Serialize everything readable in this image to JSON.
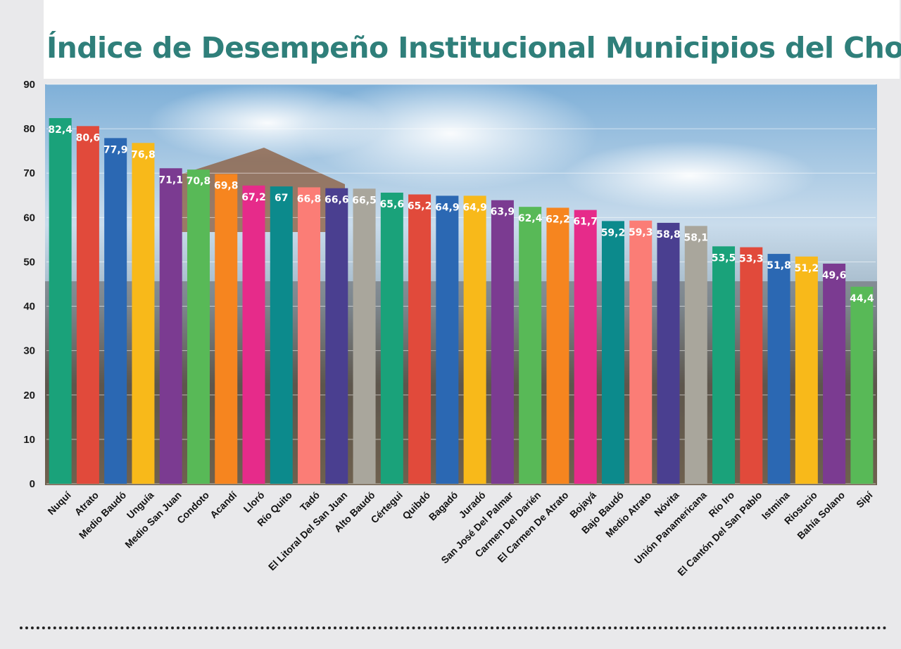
{
  "chart_data": {
    "type": "bar",
    "title": "Índice de Desempeño Institucional Municipios del Chocó",
    "xlabel": "",
    "ylabel": "",
    "ylim": [
      0,
      90
    ],
    "yticks": [
      0,
      10,
      20,
      30,
      40,
      50,
      60,
      70,
      80,
      90
    ],
    "grid": true,
    "legend": "none",
    "categories": [
      "Nuquí",
      "Atrato",
      "Medio Baudó",
      "Unguía",
      "Medio San Juan",
      "Condoto",
      "Acandí",
      "Lloró",
      "Río Quito",
      "Tadó",
      "El Litoral Del San Juan",
      "Alto Baudó",
      "Cértegui",
      "Quibdó",
      "Bagadó",
      "Juradó",
      "San José Del Palmar",
      "Carmen Del Darién",
      "El Carmen De Atrato",
      "Bojayá",
      "Bajo Baudó",
      "Medio Atrato",
      "Nóvita",
      "Unión Panamericana",
      "Río Iro",
      "El Cantón Del San Pablo",
      "Istmina",
      "Riosucio",
      "Bahía Solano",
      "Sipí"
    ],
    "values": [
      82.4,
      80.6,
      77.9,
      76.8,
      71.1,
      70.8,
      69.8,
      67.2,
      67,
      66.8,
      66.6,
      66.5,
      65.6,
      65.2,
      64.9,
      64.9,
      63.9,
      62.4,
      62.2,
      61.7,
      59.2,
      59.3,
      58.8,
      58.1,
      53.5,
      53.3,
      51.8,
      51.2,
      49.6,
      44.4
    ],
    "value_labels": [
      "82,4",
      "80,6",
      "77,9",
      "76,8",
      "71,1",
      "70,8",
      "69,8",
      "67,2",
      "67",
      "66,8",
      "66,6",
      "66,5",
      "65,6",
      "65,2",
      "64,9",
      "64,9",
      "63,9",
      "62,4",
      "62,2",
      "61,7",
      "59,2",
      "59,3",
      "58,8",
      "58,1",
      "53,5",
      "53,3",
      "51,8",
      "51,2",
      "49,6",
      "44,4"
    ],
    "bar_colors": [
      "#1aa27a",
      "#e14a3b",
      "#2b68b3",
      "#f8b91a",
      "#7b3b91",
      "#58b957",
      "#f6851f",
      "#e62b8a",
      "#0c8a8c",
      "#fb7d76",
      "#4a3f90",
      "#a9a69c",
      "#1aa27a",
      "#e14a3b",
      "#2b68b3",
      "#f8b91a",
      "#7b3b91",
      "#58b957",
      "#f6851f",
      "#e62b8a",
      "#0c8a8c",
      "#fb7d76",
      "#4a3f90",
      "#a9a69c",
      "#1aa27a",
      "#e14a3b",
      "#2b68b3",
      "#f8b91a",
      "#7b3b91",
      "#58b957"
    ]
  },
  "colors": {
    "title": "#2f7f7a",
    "background": "#e9e9eb",
    "label_white": "#ffffff"
  }
}
